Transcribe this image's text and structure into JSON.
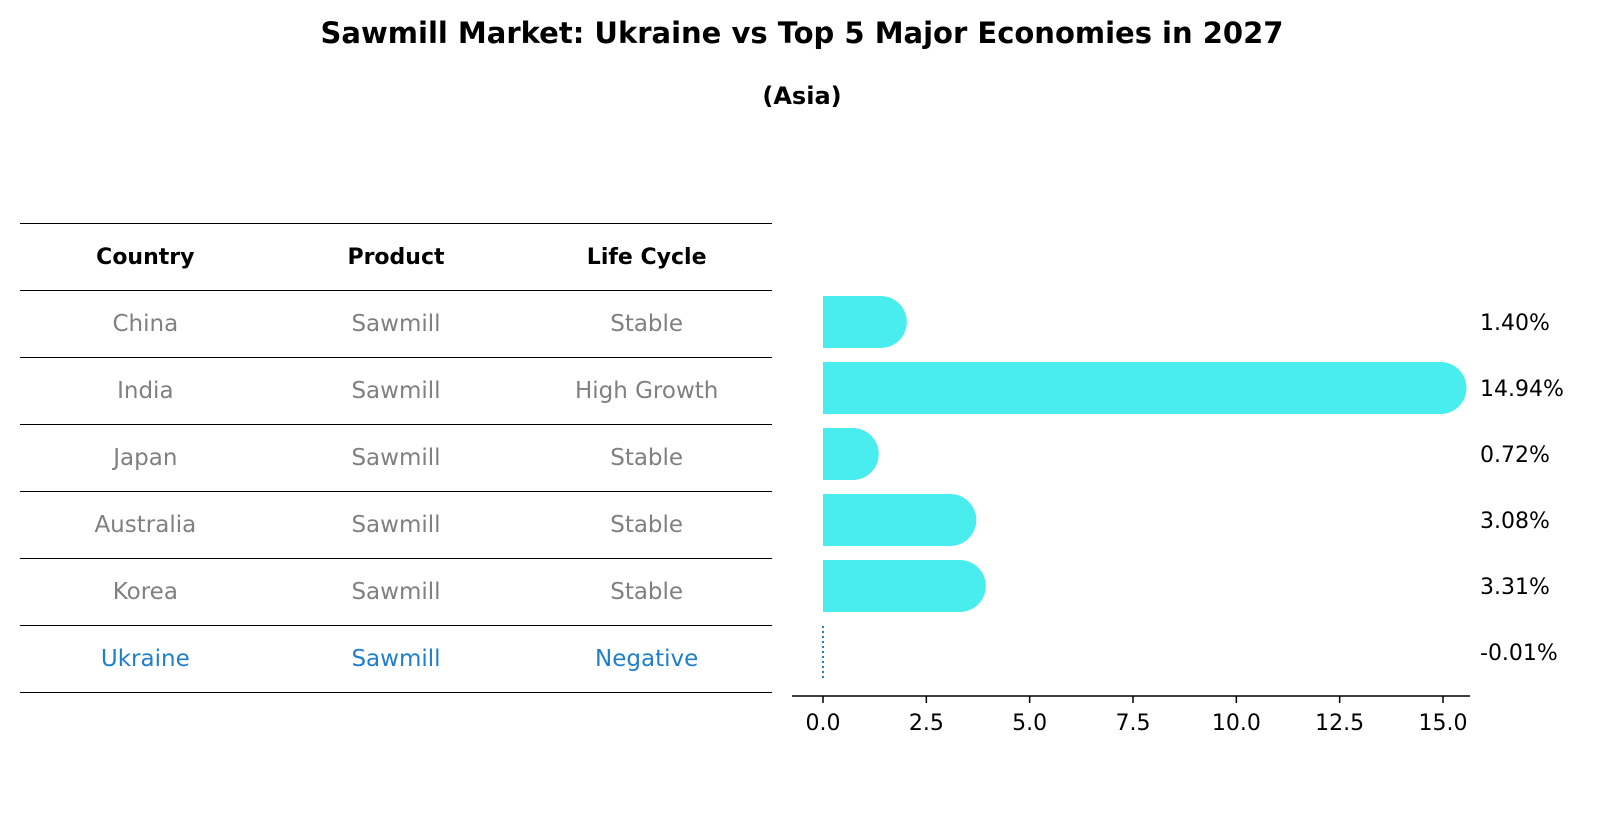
{
  "title": "Sawmill Market: Ukraine vs Top 5 Major Economies in 2027",
  "subtitle": "(Asia)",
  "table": {
    "headers": [
      "Country",
      "Product",
      "Life Cycle"
    ],
    "rows": [
      {
        "country": "China",
        "product": "Sawmill",
        "life_cycle": "Stable"
      },
      {
        "country": "India",
        "product": "Sawmill",
        "life_cycle": "High Growth"
      },
      {
        "country": "Japan",
        "product": "Sawmill",
        "life_cycle": "Stable"
      },
      {
        "country": "Australia",
        "product": "Sawmill",
        "life_cycle": "Stable"
      },
      {
        "country": "Korea",
        "product": "Sawmill",
        "life_cycle": "Stable"
      },
      {
        "country": "Ukraine",
        "product": "Sawmill",
        "life_cycle": "Negative"
      }
    ]
  },
  "colors": {
    "bar": "#4aeded",
    "highlight": "#1f7fcf",
    "muted": "#808080"
  },
  "chart_data": {
    "type": "bar",
    "orientation": "horizontal",
    "categories": [
      "China",
      "India",
      "Japan",
      "Australia",
      "Korea",
      "Ukraine"
    ],
    "values": [
      1.4,
      14.94,
      0.72,
      3.08,
      3.31,
      -0.01
    ],
    "value_labels": [
      "1.40%",
      "14.94%",
      "0.72%",
      "3.08%",
      "3.31%",
      "-0.01%"
    ],
    "xticks": [
      "0.0",
      "2.5",
      "5.0",
      "7.5",
      "10.0",
      "12.5",
      "15.0"
    ],
    "xtick_values": [
      0,
      2.5,
      5,
      7.5,
      10,
      12.5,
      15
    ],
    "xlim": [
      -0.75,
      15.7
    ],
    "grid": false,
    "legend": "none"
  }
}
